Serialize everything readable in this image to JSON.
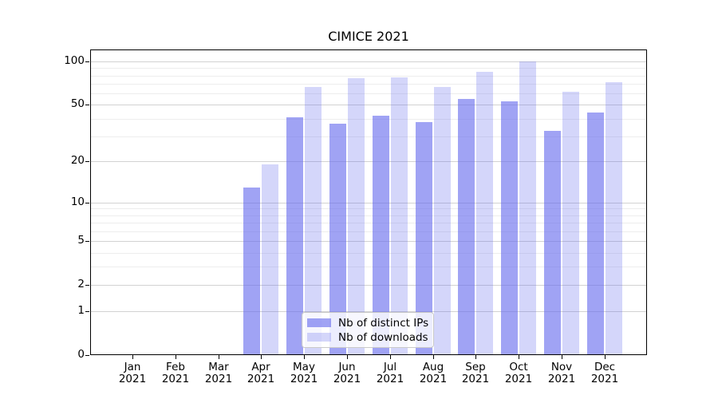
{
  "chart_data": {
    "type": "bar",
    "title": "CIMICE 2021",
    "categories": [
      "Jan",
      "Feb",
      "Mar",
      "Apr",
      "May",
      "Jun",
      "Jul",
      "Aug",
      "Sep",
      "Oct",
      "Nov",
      "Dec"
    ],
    "category_year": "2021",
    "series": [
      {
        "name": "Nb of distinct IPs",
        "color": "rgba(102,107,238,0.62)",
        "values": [
          0,
          0,
          0,
          13,
          41,
          37,
          42,
          38,
          55,
          53,
          33,
          44
        ]
      },
      {
        "name": "Nb of downloads",
        "color": "rgba(102,107,238,0.28)",
        "values": [
          0,
          0,
          0,
          19,
          67,
          77,
          78,
          67,
          85,
          100,
          62,
          72
        ]
      }
    ],
    "y_axis": {
      "scale": "log10(1+v)",
      "ticks": [
        100,
        50,
        20,
        10,
        5,
        2,
        1,
        0
      ],
      "minor_ticks": [
        90,
        80,
        70,
        60,
        40,
        30,
        9,
        8,
        7,
        6,
        4,
        3
      ],
      "ymax": 120
    },
    "xlabel": "",
    "ylabel": "",
    "grid": {
      "enabled": true,
      "major_color": "#d2d2d2",
      "minor_color": "#ededed"
    },
    "legend": {
      "position": "bottom-center-inside"
    }
  }
}
